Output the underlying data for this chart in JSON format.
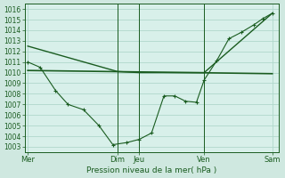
{
  "bg_color": "#cfe8e0",
  "plot_bg": "#d8f0ea",
  "grid_color": "#b0d8cc",
  "line_color": "#1a5c20",
  "title": "Pression niveau de la mer( hPa )",
  "ylim": [
    1002.5,
    1016.5
  ],
  "yticks": [
    1003,
    1004,
    1005,
    1006,
    1007,
    1008,
    1009,
    1010,
    1011,
    1012,
    1013,
    1014,
    1015,
    1016
  ],
  "xlim": [
    0,
    8.2
  ],
  "day_labels": [
    "Mer",
    "Dim",
    "Jeu",
    "Ven",
    "Sam"
  ],
  "day_positions": [
    0.1,
    3.0,
    3.7,
    5.8,
    8.0
  ],
  "vline_positions": [
    3.0,
    3.7,
    5.8
  ],
  "line1_x": [
    0.1,
    3.0,
    3.7,
    5.8,
    8.0
  ],
  "line1_y": [
    1012.5,
    1010.1,
    1010.0,
    1010.0,
    1015.6
  ],
  "line2_x": [
    0.1,
    0.5,
    1.0,
    1.4,
    1.9,
    2.4,
    2.85,
    3.3,
    3.7,
    4.1,
    4.5,
    4.85,
    5.2,
    5.55,
    5.8,
    6.2,
    6.6,
    7.0,
    7.4,
    7.7,
    8.0
  ],
  "line2_y": [
    1011.0,
    1010.5,
    1008.3,
    1007.0,
    1006.5,
    1005.0,
    1003.2,
    1003.4,
    1003.7,
    1004.3,
    1007.8,
    1007.8,
    1007.3,
    1007.2,
    1009.3,
    1011.1,
    1013.2,
    1013.8,
    1014.5,
    1015.1,
    1015.6
  ],
  "line3_x": [
    0.1,
    8.0
  ],
  "line3_y": [
    1010.2,
    1009.9
  ],
  "title_fontsize": 6.5,
  "tick_fontsize": 5.5,
  "xlabel_fontsize": 6.0
}
